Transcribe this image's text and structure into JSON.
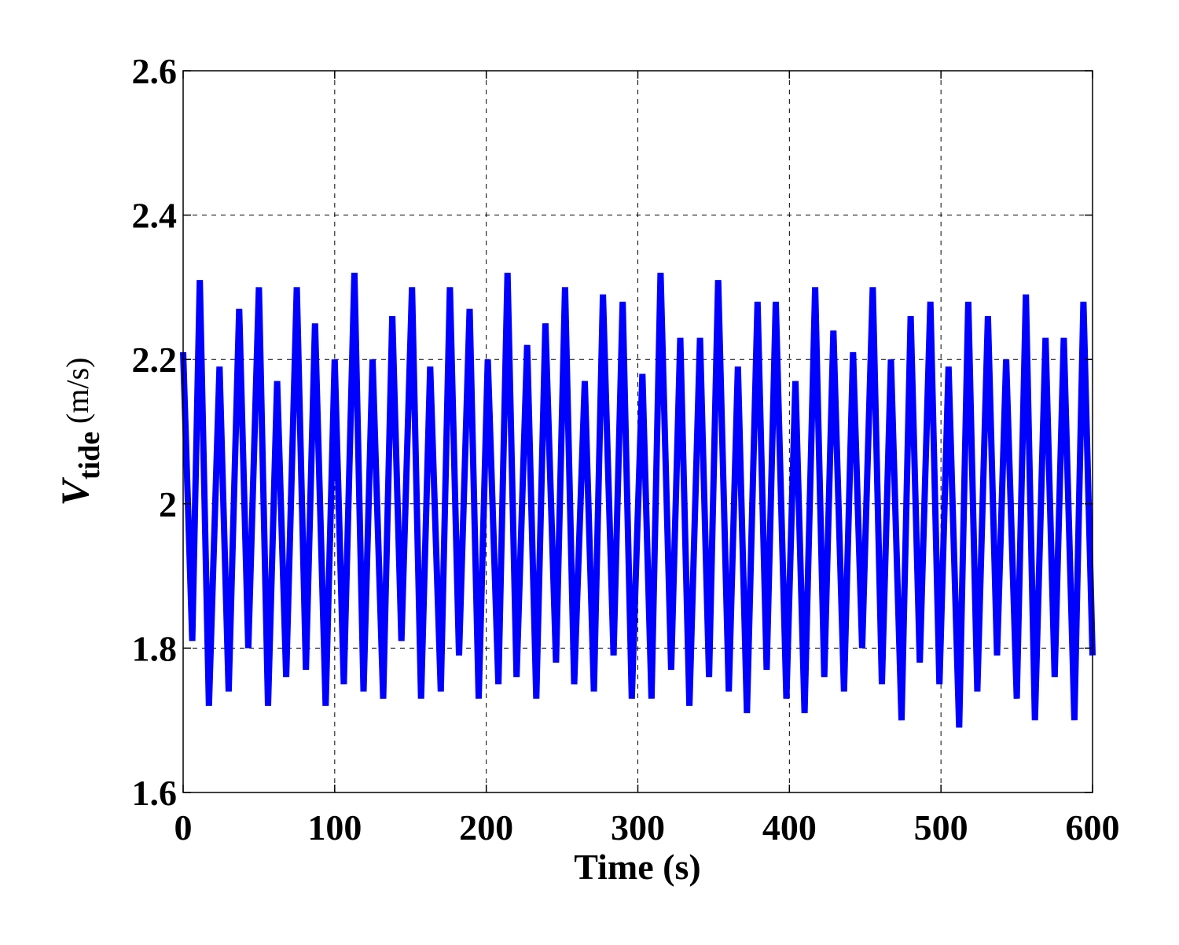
{
  "chart_data": {
    "type": "line",
    "xlabel": "Time (s)",
    "ylabel": {
      "symbol": "V",
      "subscript": "tide",
      "unit": "(m/s)"
    },
    "xlim": [
      0,
      600
    ],
    "ylim": [
      1.6,
      2.6
    ],
    "xticks": [
      "0",
      "100",
      "200",
      "300",
      "400",
      "500",
      "600"
    ],
    "yticks": [
      "1.6",
      "1.8",
      "2",
      "2.2",
      "2.4",
      "2.6"
    ],
    "grid": true,
    "grid_style": "dashed",
    "line_color": "#0000ff",
    "series": [
      {
        "x": [
          0,
          6,
          11,
          17,
          24,
          30,
          37,
          43,
          50,
          56,
          62,
          68,
          75,
          81,
          87,
          94,
          100,
          106,
          113,
          119,
          125,
          132,
          138,
          144,
          151,
          157,
          163,
          170,
          176,
          182,
          189,
          195,
          201,
          208,
          214,
          220,
          227,
          233,
          239,
          246,
          252,
          258,
          265,
          271,
          277,
          284,
          290,
          296,
          303,
          309,
          315,
          322,
          328,
          334,
          341,
          347,
          353,
          360,
          366,
          372,
          379,
          385,
          391,
          398,
          404,
          410,
          417,
          423,
          429,
          436,
          442,
          448,
          455,
          461,
          467,
          474,
          480,
          486,
          493,
          499,
          505,
          512,
          518,
          524,
          531,
          537,
          543,
          550,
          556,
          562,
          569,
          575,
          581,
          588,
          594,
          600
        ],
        "y": [
          2.21,
          1.81,
          2.31,
          1.72,
          2.19,
          1.74,
          2.27,
          1.8,
          2.3,
          1.72,
          2.17,
          1.76,
          2.3,
          1.77,
          2.25,
          1.72,
          2.2,
          1.75,
          2.32,
          1.74,
          2.2,
          1.73,
          2.26,
          1.81,
          2.3,
          1.73,
          2.19,
          1.74,
          2.3,
          1.79,
          2.27,
          1.73,
          2.2,
          1.75,
          2.32,
          1.76,
          2.22,
          1.73,
          2.25,
          1.78,
          2.3,
          1.75,
          2.17,
          1.74,
          2.29,
          1.79,
          2.28,
          1.73,
          2.18,
          1.73,
          2.32,
          1.77,
          2.23,
          1.72,
          2.23,
          1.76,
          2.31,
          1.74,
          2.19,
          1.71,
          2.28,
          1.77,
          2.28,
          1.73,
          2.17,
          1.71,
          2.3,
          1.76,
          2.24,
          1.74,
          2.21,
          1.8,
          2.3,
          1.75,
          2.2,
          1.7,
          2.26,
          1.78,
          2.28,
          1.75,
          2.19,
          1.69,
          2.28,
          1.74,
          2.26,
          1.79,
          2.2,
          1.73,
          2.29,
          1.7,
          2.23,
          1.76,
          2.23,
          1.7,
          2.28,
          1.79
        ]
      }
    ]
  }
}
